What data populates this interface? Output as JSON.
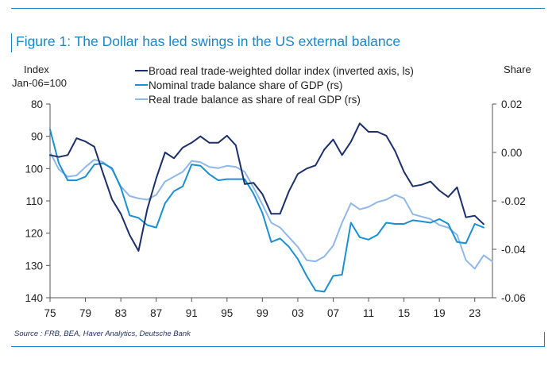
{
  "figure_title": "Figure 1: The Dollar has led swings in the US external balance",
  "source": "Source : FRB, BEA, Haver Analytics, Deutsche Bank",
  "chart_data": {
    "type": "line",
    "title": "Figure 1: The Dollar has led swings in the US external balance",
    "left_axis": {
      "label_line1": "Index",
      "label_line2": "Jan-06=100",
      "range": [
        80,
        140
      ],
      "inverted": true,
      "ticks": [
        80,
        90,
        100,
        110,
        120,
        130,
        140
      ],
      "tick_labels": [
        "80",
        "90",
        "100",
        "110",
        "120",
        "130",
        "140"
      ]
    },
    "right_axis": {
      "label": "Share",
      "range": [
        -0.06,
        0.02
      ],
      "ticks": [
        0.02,
        0.0,
        -0.02,
        -0.04,
        -0.06
      ],
      "tick_labels": [
        "0.02",
        "0.00",
        "-0.02",
        "-0.04",
        "-0.06"
      ]
    },
    "x_axis": {
      "range": [
        1975,
        2025
      ],
      "ticks": [
        1975,
        1979,
        1983,
        1987,
        1991,
        1995,
        1999,
        2003,
        2007,
        2011,
        2015,
        2019,
        2023
      ],
      "tick_labels": [
        "75",
        "79",
        "83",
        "87",
        "91",
        "95",
        "99",
        "03",
        "07",
        "11",
        "15",
        "19",
        "23"
      ]
    },
    "grid": false,
    "legend_position": "top-center",
    "series": [
      {
        "name": "Broad real trade-weighted dollar index (inverted axis, ls)",
        "axis": "left",
        "color": "#1b2f6b",
        "points": [
          [
            1975,
            95.8
          ],
          [
            1976,
            96.4
          ],
          [
            1977,
            95.8
          ],
          [
            1978,
            90.6
          ],
          [
            1979,
            91.6
          ],
          [
            1980,
            93.2
          ],
          [
            1981,
            101.5
          ],
          [
            1982,
            109.5
          ],
          [
            1983,
            114.0
          ],
          [
            1984,
            120.6
          ],
          [
            1985,
            125.5
          ],
          [
            1986,
            112.5
          ],
          [
            1987,
            103.0
          ],
          [
            1988,
            95.0
          ],
          [
            1989,
            96.8
          ],
          [
            1990,
            93.5
          ],
          [
            1991,
            92.0
          ],
          [
            1992,
            90.0
          ],
          [
            1993,
            92.0
          ],
          [
            1994,
            92.0
          ],
          [
            1995,
            89.8
          ],
          [
            1996,
            92.8
          ],
          [
            1997,
            104.8
          ],
          [
            1998,
            104.4
          ],
          [
            1999,
            107.9
          ],
          [
            2000,
            114.0
          ],
          [
            2001,
            114.0
          ],
          [
            2002,
            107.0
          ],
          [
            2003,
            101.7
          ],
          [
            2004,
            100.0
          ],
          [
            2005,
            99.0
          ],
          [
            2006,
            94.1
          ],
          [
            2007,
            91.0
          ],
          [
            2008,
            95.8
          ],
          [
            2009,
            91.7
          ],
          [
            2010,
            86.0
          ],
          [
            2011,
            88.6
          ],
          [
            2012,
            88.6
          ],
          [
            2013,
            89.8
          ],
          [
            2014,
            94.6
          ],
          [
            2015,
            101.0
          ],
          [
            2016,
            105.5
          ],
          [
            2017,
            105.0
          ],
          [
            2018,
            104.0
          ],
          [
            2019,
            106.8
          ],
          [
            2020,
            108.8
          ],
          [
            2021,
            105.8
          ],
          [
            2022,
            115.1
          ],
          [
            2023,
            114.6
          ],
          [
            2024,
            117.2
          ]
        ]
      },
      {
        "name": "Nominal trade balance share of GDP (rs)",
        "axis": "right",
        "color": "#1a8fd1",
        "points": [
          [
            1975,
            0.0095
          ],
          [
            1976,
            -0.0045
          ],
          [
            1977,
            -0.0115
          ],
          [
            1978,
            -0.0115
          ],
          [
            1979,
            -0.01
          ],
          [
            1980,
            -0.005
          ],
          [
            1981,
            -0.0045
          ],
          [
            1982,
            -0.0065
          ],
          [
            1983,
            -0.0145
          ],
          [
            1984,
            -0.026
          ],
          [
            1985,
            -0.027
          ],
          [
            1986,
            -0.03
          ],
          [
            1987,
            -0.031
          ],
          [
            1988,
            -0.021
          ],
          [
            1989,
            -0.016
          ],
          [
            1990,
            -0.014
          ],
          [
            1991,
            -0.005
          ],
          [
            1992,
            -0.0055
          ],
          [
            1993,
            -0.009
          ],
          [
            1994,
            -0.0115
          ],
          [
            1995,
            -0.011
          ],
          [
            1996,
            -0.011
          ],
          [
            1997,
            -0.011
          ],
          [
            1998,
            -0.017
          ],
          [
            1999,
            -0.025
          ],
          [
            2000,
            -0.037
          ],
          [
            2001,
            -0.0355
          ],
          [
            2002,
            -0.039
          ],
          [
            2003,
            -0.044
          ],
          [
            2004,
            -0.051
          ],
          [
            2005,
            -0.057
          ],
          [
            2006,
            -0.0575
          ],
          [
            2007,
            -0.051
          ],
          [
            2008,
            -0.0505
          ],
          [
            2009,
            -0.029
          ],
          [
            2010,
            -0.035
          ],
          [
            2011,
            -0.036
          ],
          [
            2012,
            -0.034
          ],
          [
            2013,
            -0.029
          ],
          [
            2014,
            -0.0295
          ],
          [
            2015,
            -0.0295
          ],
          [
            2016,
            -0.028
          ],
          [
            2017,
            -0.0285
          ],
          [
            2018,
            -0.029
          ],
          [
            2019,
            -0.0275
          ],
          [
            2020,
            -0.0295
          ],
          [
            2021,
            -0.037
          ],
          [
            2022,
            -0.0375
          ],
          [
            2023,
            -0.0295
          ],
          [
            2024,
            -0.031
          ]
        ]
      },
      {
        "name": "Real trade balance as share of real GDP (rs)",
        "axis": "right",
        "color": "#8fb7e8",
        "points": [
          [
            1975,
            0.0
          ],
          [
            1976,
            -0.007
          ],
          [
            1977,
            -0.01
          ],
          [
            1978,
            -0.0095
          ],
          [
            1979,
            -0.006
          ],
          [
            1980,
            -0.003
          ],
          [
            1981,
            -0.004
          ],
          [
            1982,
            -0.007
          ],
          [
            1983,
            -0.014
          ],
          [
            1984,
            -0.018
          ],
          [
            1985,
            -0.019
          ],
          [
            1986,
            -0.0195
          ],
          [
            1987,
            -0.0175
          ],
          [
            1988,
            -0.012
          ],
          [
            1989,
            -0.01
          ],
          [
            1990,
            -0.008
          ],
          [
            1991,
            -0.0035
          ],
          [
            1992,
            -0.004
          ],
          [
            1993,
            -0.006
          ],
          [
            1994,
            -0.0065
          ],
          [
            1995,
            -0.0055
          ],
          [
            1996,
            -0.006
          ],
          [
            1997,
            -0.008
          ],
          [
            1998,
            -0.0145
          ],
          [
            1999,
            -0.0215
          ],
          [
            2000,
            -0.029
          ],
          [
            2001,
            -0.031
          ],
          [
            2002,
            -0.035
          ],
          [
            2003,
            -0.039
          ],
          [
            2004,
            -0.0445
          ],
          [
            2005,
            -0.045
          ],
          [
            2006,
            -0.043
          ],
          [
            2007,
            -0.0385
          ],
          [
            2008,
            -0.029
          ],
          [
            2009,
            -0.021
          ],
          [
            2010,
            -0.0235
          ],
          [
            2011,
            -0.0225
          ],
          [
            2012,
            -0.0205
          ],
          [
            2013,
            -0.0195
          ],
          [
            2014,
            -0.0175
          ],
          [
            2015,
            -0.019
          ],
          [
            2016,
            -0.0255
          ],
          [
            2017,
            -0.0265
          ],
          [
            2018,
            -0.0275
          ],
          [
            2019,
            -0.03
          ],
          [
            2020,
            -0.031
          ],
          [
            2021,
            -0.034
          ],
          [
            2022,
            -0.0445
          ],
          [
            2023,
            -0.048
          ],
          [
            2024,
            -0.0425
          ],
          [
            2025,
            -0.045
          ]
        ]
      }
    ]
  }
}
